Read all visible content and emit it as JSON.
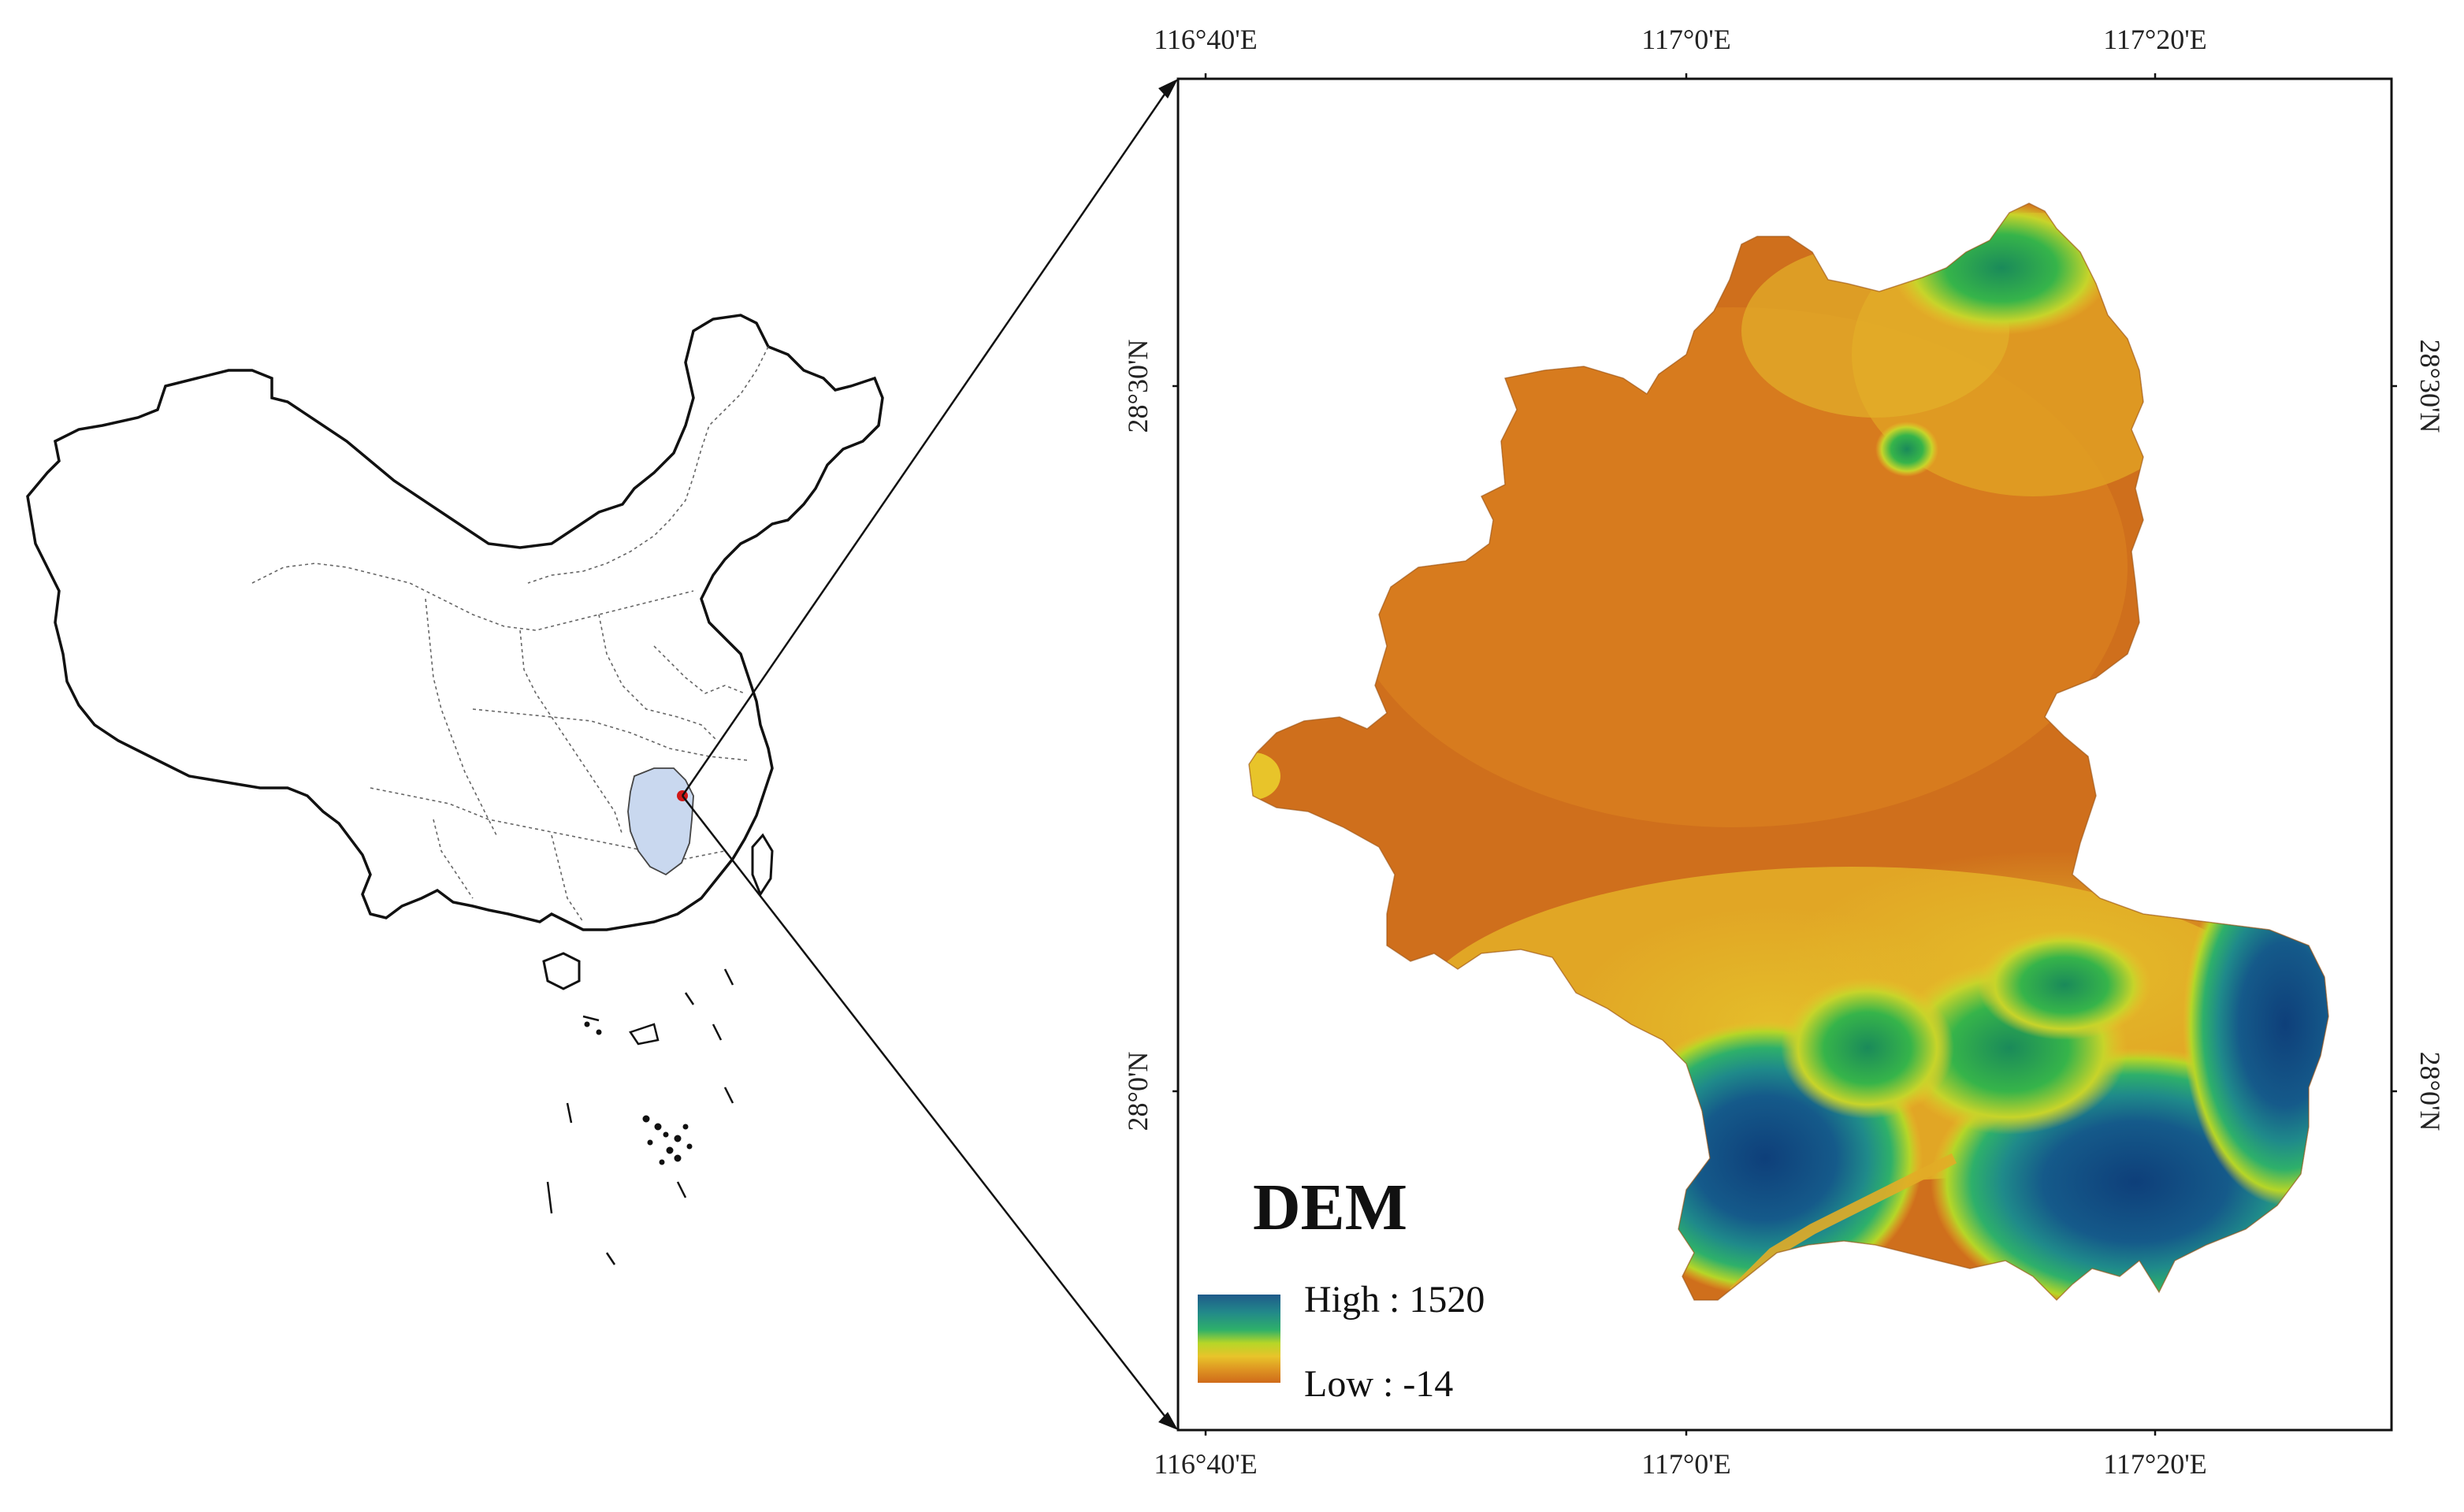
{
  "map": {
    "top_axis_labels": [
      "116°40'E",
      "117°0'E",
      "117°20'E"
    ],
    "bottom_axis_labels": [
      "116°40'E",
      "117°0'E",
      "117°20'E"
    ],
    "left_axis_labels": [
      "28°30'N",
      "28°0'N"
    ],
    "right_axis_labels": [
      "28°30'N",
      "28°0'N"
    ],
    "legend": {
      "title": "DEM",
      "high_label": "High : 1520",
      "low_label": "Low : -14",
      "high_value": 1520,
      "low_value": -14,
      "colors": [
        "#1a3f8c",
        "#2a8a8a",
        "#2eb06a",
        "#b6d627",
        "#e8c42a",
        "#d9851e",
        "#cf6a1a"
      ]
    },
    "china_highlight_color": "#c9d8ef",
    "study_area_marker_color": "#d01818"
  }
}
